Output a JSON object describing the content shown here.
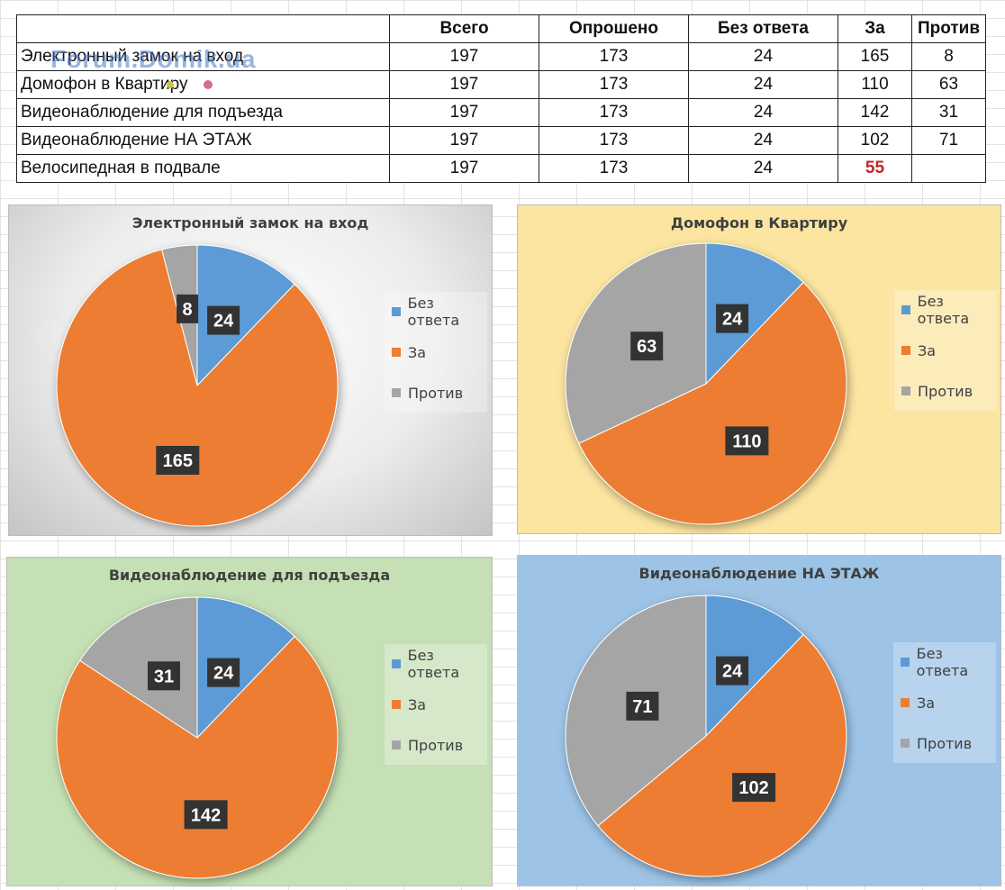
{
  "table": {
    "headers": [
      "",
      "Всего",
      "Опрошено",
      "Без ответа",
      "За",
      "Против"
    ],
    "rows": [
      [
        "Электронный замок на вход",
        "197",
        "173",
        "24",
        "165",
        "8"
      ],
      [
        "Домофон в Квартиру",
        "197",
        "173",
        "24",
        "110",
        "63"
      ],
      [
        "Видеонаблюдение для подъезда",
        "197",
        "173",
        "24",
        "142",
        "31"
      ],
      [
        "Видеонаблюдение НА ЭТАЖ",
        "197",
        "173",
        "24",
        "102",
        "71"
      ],
      [
        "Велосипедная в подвале",
        "197",
        "173",
        "24",
        "55",
        ""
      ]
    ],
    "highlight_color": "#c0262a"
  },
  "watermark": "Forum.Domik.ua",
  "colors": {
    "no_answer": "#5b9bd5",
    "for": "#ed7d31",
    "against": "#a5a5a5",
    "label_bg": "#333333"
  },
  "chart_data": [
    {
      "type": "pie",
      "title": "Электронный замок на вход",
      "categories": [
        "Без ответа",
        "За",
        "Против"
      ],
      "values": [
        24,
        165,
        8
      ],
      "legend": "right",
      "background": "gradient-gray"
    },
    {
      "type": "pie",
      "title": "Домофон в Квартиру",
      "categories": [
        "Без ответа",
        "За",
        "Против"
      ],
      "values": [
        24,
        110,
        63
      ],
      "legend": "right",
      "background": "#fbe5a0"
    },
    {
      "type": "pie",
      "title": "Видеонаблюдение для подъезда",
      "categories": [
        "Без ответа",
        "За",
        "Против"
      ],
      "values": [
        24,
        142,
        31
      ],
      "legend": "right",
      "background": "#c5e0b4"
    },
    {
      "type": "pie",
      "title": "Видеонаблюдение НА ЭТАЖ",
      "categories": [
        "Без ответа",
        "За",
        "Против"
      ],
      "values": [
        24,
        102,
        71
      ],
      "legend": "right",
      "background": "#9dc3e6"
    }
  ]
}
